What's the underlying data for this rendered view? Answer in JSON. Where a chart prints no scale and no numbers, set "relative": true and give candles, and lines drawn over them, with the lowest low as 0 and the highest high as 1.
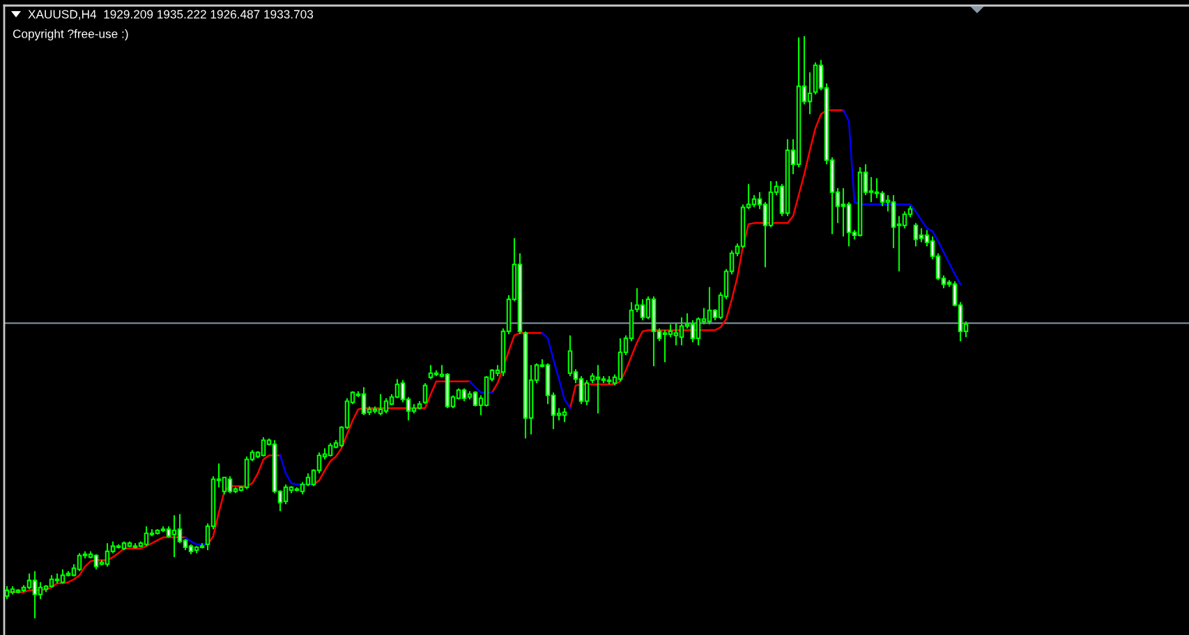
{
  "chart_data": {
    "type": "candlestick",
    "title": "XAUUSD,H4  1929.209 1935.222 1926.487 1933.703",
    "annotations": [
      "Copyright ?free-use :)"
    ],
    "relative": true,
    "color": "#00ff00",
    "categories": [
      null,
      null,
      null,
      null,
      null,
      null,
      null,
      null,
      null,
      null,
      null,
      null,
      null,
      null,
      null,
      null,
      null,
      null,
      null,
      null,
      null,
      null,
      null,
      null,
      null,
      null,
      null,
      null,
      null,
      null,
      null,
      null,
      null,
      null,
      null,
      null,
      null,
      null,
      null,
      null,
      null,
      null,
      null,
      null,
      null,
      null,
      null,
      null,
      null,
      null,
      null,
      null,
      null,
      null,
      null,
      null,
      null,
      null,
      null,
      null,
      null,
      null,
      null,
      null,
      null,
      null,
      null,
      null,
      null,
      null,
      null,
      null,
      null,
      null,
      null,
      null,
      null,
      null,
      null,
      null,
      null,
      null,
      null,
      null,
      null,
      null,
      null,
      null,
      null,
      null,
      null,
      null,
      null,
      null,
      null,
      null,
      null,
      null,
      null,
      null,
      null,
      null,
      null,
      null,
      null,
      null,
      null,
      null,
      null,
      null,
      null,
      null,
      null,
      null,
      null,
      null,
      null,
      null,
      null,
      null,
      null,
      null,
      null,
      null,
      null,
      null,
      null,
      null,
      null,
      null,
      null,
      null,
      null,
      null,
      null,
      null,
      null,
      null,
      null,
      null,
      null,
      null,
      null,
      null,
      null,
      null,
      null,
      null,
      null,
      null,
      null,
      null,
      null,
      null,
      null,
      null,
      null,
      null,
      null,
      null,
      null,
      null,
      null,
      null,
      null,
      null,
      null,
      null,
      null,
      null,
      null,
      null,
      null
    ],
    "ohlc": [
      [
        0.038,
        0.055,
        0.033,
        0.048
      ],
      [
        0.045,
        0.055,
        0.041,
        0.05
      ],
      [
        0.045,
        0.05,
        0.043,
        0.048
      ],
      [
        0.048,
        0.057,
        0.045,
        0.053
      ],
      [
        0.053,
        0.077,
        0.05,
        0.065
      ],
      [
        0.065,
        0.081,
        0,
        0.041
      ],
      [
        0.041,
        0.062,
        0.033,
        0.053
      ],
      [
        0.05,
        0.057,
        0.045,
        0.055
      ],
      [
        0.055,
        0.074,
        0.053,
        0.067
      ],
      [
        0.065,
        0.077,
        0.06,
        0.067
      ],
      [
        0.062,
        0.084,
        0.06,
        0.074
      ],
      [
        0.074,
        0.081,
        0.072,
        0.077
      ],
      [
        0.074,
        0.093,
        0.072,
        0.086
      ],
      [
        0.084,
        0.112,
        0.081,
        0.108
      ],
      [
        0.108,
        0.115,
        0.103,
        0.11
      ],
      [
        0.105,
        0.115,
        0.103,
        0.11
      ],
      [
        0.108,
        0.11,
        0.084,
        0.089
      ],
      [
        0.093,
        0.1,
        0.091,
        0.096
      ],
      [
        0.093,
        0.129,
        0.089,
        0.115
      ],
      [
        0.115,
        0.132,
        0.112,
        0.124
      ],
      [
        0.122,
        0.127,
        0.12,
        0.124
      ],
      [
        0.12,
        0.132,
        0.117,
        0.129
      ],
      [
        0.124,
        0.132,
        0.122,
        0.129
      ],
      [
        0.122,
        0.129,
        0.12,
        0.124
      ],
      [
        0.124,
        0.132,
        0.122,
        0.129
      ],
      [
        0.127,
        0.158,
        0.124,
        0.146
      ],
      [
        0.144,
        0.153,
        0.141,
        0.146
      ],
      [
        0.146,
        0.153,
        0.144,
        0.151
      ],
      [
        0.151,
        0.158,
        0.148,
        0.153
      ],
      [
        0.153,
        0.158,
        0.139,
        0.141
      ],
      [
        0.144,
        0.177,
        0.105,
        0.151
      ],
      [
        0.153,
        0.179,
        0.129,
        0.132
      ],
      [
        0.134,
        0.136,
        0.117,
        0.122
      ],
      [
        0.124,
        0.127,
        0.11,
        0.115
      ],
      [
        0.117,
        0.124,
        0.112,
        0.122
      ],
      [
        0.122,
        0.129,
        0.12,
        0.124
      ],
      [
        0.127,
        0.163,
        0.117,
        0.158
      ],
      [
        0.158,
        0.244,
        0.153,
        0.239
      ],
      [
        0.237,
        0.266,
        0.225,
        0.239
      ],
      [
        0.218,
        0.242,
        0.213,
        0.242
      ],
      [
        0.239,
        0.244,
        0.215,
        0.218
      ],
      [
        0.218,
        0.225,
        0.215,
        0.222
      ],
      [
        0.22,
        0.227,
        0.218,
        0.225
      ],
      [
        0.225,
        0.278,
        0.222,
        0.273
      ],
      [
        0.273,
        0.289,
        0.27,
        0.285
      ],
      [
        0.278,
        0.287,
        0.275,
        0.285
      ],
      [
        0.28,
        0.311,
        0.278,
        0.306
      ],
      [
        0.299,
        0.309,
        0.297,
        0.306
      ],
      [
        0.299,
        0.306,
        0.215,
        0.218
      ],
      [
        0.218,
        0.22,
        0.184,
        0.199
      ],
      [
        0.201,
        0.23,
        0.196,
        0.225
      ],
      [
        0.22,
        0.227,
        0.215,
        0.225
      ],
      [
        0.22,
        0.225,
        0.218,
        0.222
      ],
      [
        0.218,
        0.234,
        0.213,
        0.23
      ],
      [
        0.23,
        0.249,
        0.227,
        0.242
      ],
      [
        0.23,
        0.256,
        0.227,
        0.254
      ],
      [
        0.254,
        0.285,
        0.249,
        0.28
      ],
      [
        0.278,
        0.292,
        0.273,
        0.282
      ],
      [
        0.28,
        0.301,
        0.278,
        0.297
      ],
      [
        0.294,
        0.306,
        0.292,
        0.301
      ],
      [
        0.297,
        0.33,
        0.294,
        0.328
      ],
      [
        0.328,
        0.378,
        0.325,
        0.373
      ],
      [
        0.371,
        0.39,
        0.368,
        0.388
      ],
      [
        0.383,
        0.39,
        0.38,
        0.385
      ],
      [
        0.385,
        0.397,
        0.349,
        0.352
      ],
      [
        0.354,
        0.364,
        0.349,
        0.359
      ],
      [
        0.356,
        0.364,
        0.352,
        0.359
      ],
      [
        0.352,
        0.385,
        0.349,
        0.359
      ],
      [
        0.356,
        0.378,
        0.352,
        0.373
      ],
      [
        0.368,
        0.385,
        0.366,
        0.38
      ],
      [
        0.38,
        0.411,
        0.378,
        0.402
      ],
      [
        0.404,
        0.409,
        0.371,
        0.376
      ],
      [
        0.376,
        0.38,
        0.34,
        0.356
      ],
      [
        0.356,
        0.368,
        0.352,
        0.361
      ],
      [
        0.361,
        0.373,
        0.359,
        0.368
      ],
      [
        0.371,
        0.404,
        0.368,
        0.4
      ],
      [
        0.414,
        0.435,
        0.411,
        0.421
      ],
      [
        0.419,
        0.426,
        0.416,
        0.421
      ],
      [
        0.416,
        0.435,
        0.414,
        0.419
      ],
      [
        0.419,
        0.421,
        0.361,
        0.364
      ],
      [
        0.364,
        0.383,
        0.361,
        0.38
      ],
      [
        0.378,
        0.395,
        0.376,
        0.392
      ],
      [
        0.392,
        0.395,
        0.373,
        0.378
      ],
      [
        0.38,
        0.39,
        0.376,
        0.385
      ],
      [
        0.388,
        0.39,
        0.364,
        0.366
      ],
      [
        0.366,
        0.383,
        0.349,
        0.378
      ],
      [
        0.366,
        0.416,
        0.364,
        0.414
      ],
      [
        0.411,
        0.428,
        0.407,
        0.426
      ],
      [
        0.421,
        0.435,
        0.416,
        0.426
      ],
      [
        0.423,
        0.498,
        0.416,
        0.493
      ],
      [
        0.493,
        0.555,
        0.488,
        0.548
      ],
      [
        0.548,
        0.653,
        0.545,
        0.608
      ],
      [
        0.608,
        0.627,
        0.488,
        0.493
      ],
      [
        0.49,
        0.493,
        0.309,
        0.344
      ],
      [
        0.344,
        0.435,
        0.316,
        0.409
      ],
      [
        0.409,
        0.438,
        0.404,
        0.435
      ],
      [
        0.433,
        0.445,
        0.431,
        0.435
      ],
      [
        0.435,
        0.438,
        0.368,
        0.383
      ],
      [
        0.383,
        0.388,
        0.325,
        0.349
      ],
      [
        0.349,
        0.361,
        0.34,
        0.352
      ],
      [
        0.349,
        0.361,
        0.337,
        0.354
      ],
      [
        0.421,
        0.486,
        0.416,
        0.459
      ],
      [
        0.423,
        0.428,
        0.404,
        0.411
      ],
      [
        0.411,
        0.416,
        0.368,
        0.373
      ],
      [
        0.373,
        0.409,
        0.366,
        0.404
      ],
      [
        0.409,
        0.421,
        0.404,
        0.416
      ],
      [
        0.411,
        0.435,
        0.352,
        0.414
      ],
      [
        0.409,
        0.416,
        0.404,
        0.411
      ],
      [
        0.407,
        0.416,
        0.402,
        0.409
      ],
      [
        0.404,
        0.419,
        0.4,
        0.414
      ],
      [
        0.411,
        0.481,
        0.407,
        0.457
      ],
      [
        0.457,
        0.486,
        0.452,
        0.481
      ],
      [
        0.481,
        0.543,
        0.476,
        0.529
      ],
      [
        0.531,
        0.567,
        0.526,
        0.538
      ],
      [
        0.538,
        0.548,
        0.512,
        0.517
      ],
      [
        0.517,
        0.553,
        0.514,
        0.548
      ],
      [
        0.548,
        0.553,
        0.433,
        0.493
      ],
      [
        0.493,
        0.498,
        0.476,
        0.481
      ],
      [
        0.488,
        0.495,
        0.44,
        0.49
      ],
      [
        0.488,
        0.505,
        0.483,
        0.493
      ],
      [
        0.486,
        0.507,
        0.469,
        0.49
      ],
      [
        0.483,
        0.517,
        0.469,
        0.502
      ],
      [
        0.502,
        0.524,
        0.498,
        0.505
      ],
      [
        0.505,
        0.512,
        0.474,
        0.481
      ],
      [
        0.481,
        0.517,
        0.469,
        0.514
      ],
      [
        0.51,
        0.533,
        0.505,
        0.514
      ],
      [
        0.51,
        0.569,
        0.505,
        0.529
      ],
      [
        0.529,
        0.531,
        0.512,
        0.517
      ],
      [
        0.517,
        0.56,
        0.514,
        0.555
      ],
      [
        0.553,
        0.6,
        0.548,
        0.596
      ],
      [
        0.596,
        0.632,
        0.591,
        0.627
      ],
      [
        0.627,
        0.644,
        0.622,
        0.639
      ],
      [
        0.639,
        0.711,
        0.636,
        0.706
      ],
      [
        0.706,
        0.746,
        0.703,
        0.711
      ],
      [
        0.711,
        0.727,
        0.706,
        0.72
      ],
      [
        0.72,
        0.732,
        0.703,
        0.711
      ],
      [
        0.711,
        0.715,
        0.603,
        0.675
      ],
      [
        0.675,
        0.751,
        0.672,
        0.732
      ],
      [
        0.732,
        0.751,
        0.727,
        0.742
      ],
      [
        0.742,
        0.746,
        0.691,
        0.696
      ],
      [
        0.696,
        0.823,
        0.691,
        0.804
      ],
      [
        0.804,
        0.823,
        0.763,
        0.78
      ],
      [
        0.78,
        0.998,
        0.775,
        0.914
      ],
      [
        0.914,
        1,
        0.883,
        0.888
      ],
      [
        0.888,
        0.938,
        0.866,
        0.902
      ],
      [
        0.904,
        0.955,
        0.9,
        0.95
      ],
      [
        0.95,
        0.959,
        0.907,
        0.911
      ],
      [
        0.911,
        0.919,
        0.78,
        0.787
      ],
      [
        0.787,
        0.792,
        0.66,
        0.732
      ],
      [
        0.732,
        0.739,
        0.679,
        0.708
      ],
      [
        0.711,
        0.739,
        0.656,
        0.708
      ],
      [
        0.711,
        0.715,
        0.639,
        0.663
      ],
      [
        0.663,
        0.667,
        0.651,
        0.658
      ],
      [
        0.658,
        0.775,
        0.656,
        0.766
      ],
      [
        0.766,
        0.78,
        0.727,
        0.732
      ],
      [
        0.732,
        0.758,
        0.715,
        0.734
      ],
      [
        0.732,
        0.756,
        0.722,
        0.73
      ],
      [
        0.73,
        0.734,
        0.708,
        0.715
      ],
      [
        0.715,
        0.727,
        0.699,
        0.718
      ],
      [
        0.715,
        0.727,
        0.636,
        0.672
      ],
      [
        0.675,
        0.691,
        0.596,
        0.677
      ],
      [
        0.675,
        0.699,
        0.67,
        0.694
      ],
      [
        0.694,
        0.708,
        0.689,
        0.703
      ],
      [
        0.675,
        0.679,
        0.639,
        0.651
      ],
      [
        0.658,
        0.67,
        0.646,
        0.653
      ],
      [
        0.658,
        0.667,
        0.639,
        0.646
      ],
      [
        0.648,
        0.656,
        0.617,
        0.622
      ],
      [
        0.622,
        0.627,
        0.581,
        0.584
      ],
      [
        0.584,
        0.589,
        0.567,
        0.574
      ],
      [
        0.577,
        0.581,
        0.569,
        0.574
      ],
      [
        0.574,
        0.579,
        0.536,
        0.538
      ],
      [
        0.538,
        0.543,
        0.476,
        0.493
      ],
      [
        0.493,
        0.51,
        0.483,
        0.505
      ]
    ],
    "series": [
      {
        "type": "line",
        "color": "#ff0000",
        "values": [
          0.045,
          0.045,
          0.045,
          0.045,
          0.048,
          0.048,
          0.048,
          0.05,
          0.053,
          0.06,
          0.06,
          0.062,
          0.067,
          0.074,
          0.089,
          0.098,
          0.1,
          0.1,
          0.1,
          0.105,
          0.112,
          0.12,
          0.12,
          0.12,
          0.12,
          0.124,
          0.129,
          0.134,
          0.139,
          0.139,
          0.139,
          0.139,
          0.139,
          null,
          null,
          null,
          0.127,
          0.141,
          0.182,
          0.218,
          0.227,
          0.227,
          0.227,
          0.227,
          0.232,
          0.249,
          0.273,
          0.28,
          0.28,
          0.28,
          null,
          null,
          null,
          null,
          null,
          0.23,
          0.237,
          0.254,
          0.27,
          0.278,
          0.292,
          0.316,
          0.34,
          0.359,
          0.361,
          0.361,
          0.361,
          0.361,
          0.361,
          0.361,
          0.361,
          0.361,
          0.361,
          0.361,
          0.361,
          0.361,
          0.385,
          0.407,
          0.407,
          0.407,
          0.407,
          0.407,
          0.407,
          0.407,
          null,
          null,
          null,
          0.388,
          0.404,
          0.431,
          0.459,
          0.486,
          0.49,
          0.49,
          0.49,
          0.49,
          0.49,
          null,
          null,
          null,
          null,
          0.361,
          0.4,
          0.402,
          0.402,
          0.402,
          0.402,
          0.402,
          0.402,
          0.402,
          0.407,
          0.426,
          0.45,
          0.474,
          0.493,
          0.495,
          0.495,
          0.495,
          0.495,
          0.495,
          0.495,
          0.495,
          0.495,
          0.495,
          0.495,
          0.495,
          0.495,
          0.495,
          0.5,
          0.514,
          0.548,
          0.586,
          0.639,
          0.677,
          0.679,
          0.679,
          0.679,
          0.679,
          0.679,
          0.679,
          0.679,
          0.691,
          0.727,
          0.763,
          0.804,
          0.842,
          0.866,
          0.873,
          0.873,
          0.873,
          0.873,
          null,
          null,
          null,
          null,
          null,
          null,
          null,
          null,
          null,
          null,
          null,
          null,
          null,
          null,
          null,
          null,
          null,
          null,
          null,
          null,
          null,
          null
        ]
      },
      {
        "type": "line",
        "color": "#0000ff",
        "values": [
          null,
          null,
          null,
          null,
          null,
          null,
          null,
          null,
          null,
          null,
          null,
          null,
          null,
          null,
          null,
          null,
          null,
          null,
          null,
          null,
          null,
          null,
          null,
          null,
          null,
          null,
          null,
          null,
          null,
          null,
          null,
          null,
          0.139,
          0.132,
          0.127,
          0.127,
          0.127,
          null,
          null,
          null,
          null,
          null,
          null,
          null,
          null,
          null,
          null,
          null,
          null,
          0.28,
          0.249,
          0.232,
          0.23,
          0.23,
          0.23,
          0.23,
          null,
          null,
          null,
          null,
          null,
          null,
          null,
          null,
          null,
          null,
          null,
          null,
          null,
          null,
          null,
          null,
          null,
          null,
          null,
          null,
          null,
          null,
          null,
          null,
          null,
          null,
          null,
          0.407,
          0.397,
          0.388,
          0.388,
          0.388,
          null,
          null,
          null,
          null,
          null,
          null,
          null,
          null,
          0.49,
          0.481,
          0.445,
          0.411,
          0.376,
          0.361,
          null,
          null,
          null,
          null,
          null,
          null,
          null,
          null,
          null,
          null,
          null,
          null,
          null,
          null,
          null,
          null,
          null,
          null,
          null,
          null,
          null,
          null,
          null,
          null,
          null,
          null,
          null,
          null,
          null,
          null,
          null,
          null,
          null,
          null,
          null,
          null,
          null,
          null,
          null,
          null,
          null,
          null,
          null,
          null,
          null,
          null,
          null,
          null,
          0.873,
          0.854,
          0.715,
          0.711,
          0.711,
          0.711,
          0.711,
          0.711,
          0.711,
          0.711,
          0.711,
          0.711,
          0.711,
          0.699,
          0.684,
          0.67,
          0.665,
          0.648,
          0.629,
          0.61,
          0.591,
          0.574,
          null
        ]
      }
    ],
    "ref_lines": [
      {
        "axis": "y",
        "value": 0.507,
        "color": "#778899"
      }
    ]
  }
}
